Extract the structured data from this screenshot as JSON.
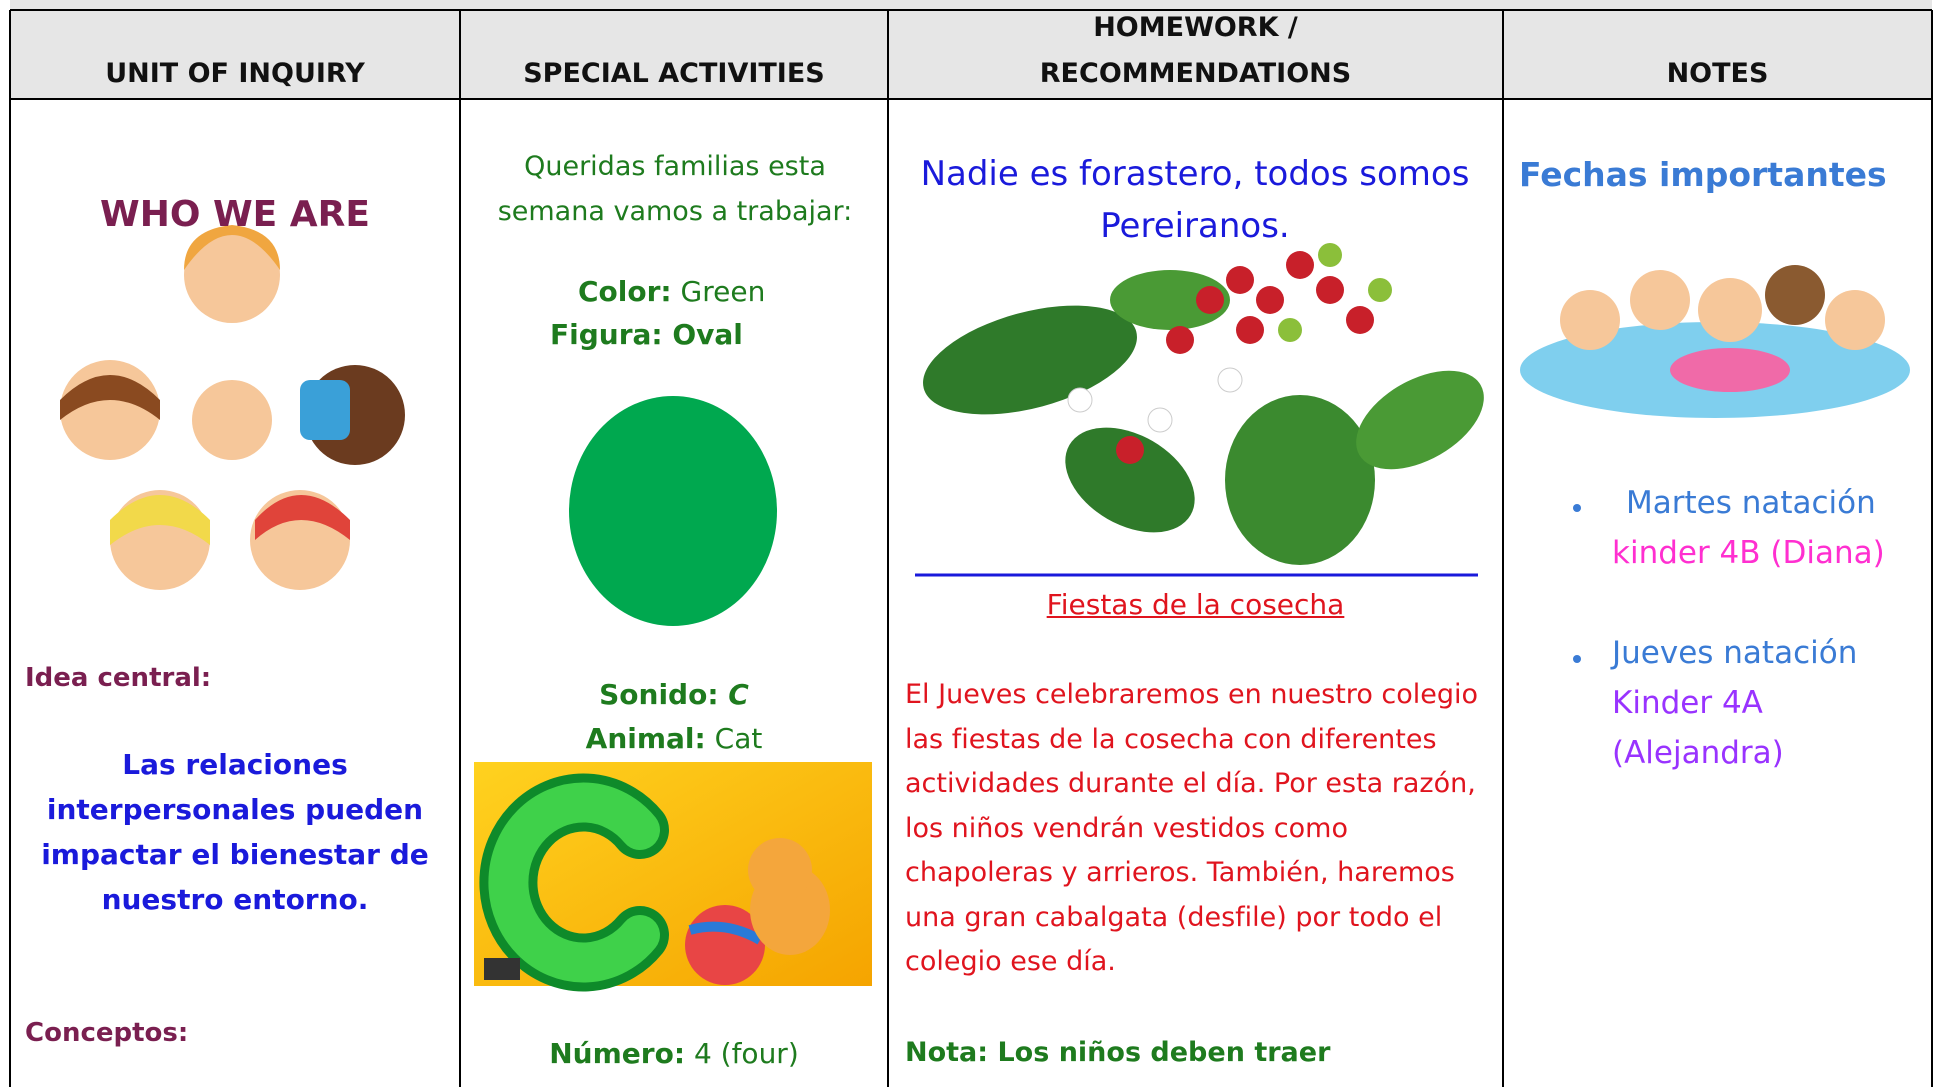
{
  "table": {
    "headers": [
      "UNIT OF INQUIRY",
      "SPECIAL ACTIVITIES",
      [
        "HOMEWORK /",
        "RECOMMENDATIONS"
      ],
      "NOTES"
    ],
    "unit": {
      "title": "WHO WE ARE",
      "idea_label": "Idea central:",
      "idea": "Las relaciones interpersonales pueden impactar el bienestar de nuestro entorno.",
      "concepts_label": "Conceptos:"
    },
    "activities": {
      "intro": "Queridas familias esta semana vamos a trabajar:",
      "color_label": "Color:",
      "color": "Green",
      "shape_label": "Figura:",
      "shape": "Oval",
      "sound_label": "Sonido:",
      "sound": "C",
      "animal_label": "Animal:",
      "animal": "Cat",
      "number_label": "Número:",
      "number": "4 (four)"
    },
    "homework": {
      "heading": "Nadie es forastero, todos somos Pereiranos.",
      "subtitle": "Fiestas de la cosecha",
      "body": "El Jueves celebraremos en nuestro colegio las fiestas de la cosecha con diferentes actividades durante el día. Por esta razón, los niños vendrán vestidos como chapoleras y arrieros. También, haremos una gran cabalgata (desfile) por todo el colegio ese día.",
      "note": "Nota: Los niños deben traer"
    },
    "notes": {
      "heading": "Fechas importantes",
      "items": [
        {
          "day": "Martes natación",
          "group": "kinder 4B (Diana)"
        },
        {
          "day": "Jueves natación",
          "group": "Kinder 4A (Alejandra)"
        }
      ]
    }
  }
}
